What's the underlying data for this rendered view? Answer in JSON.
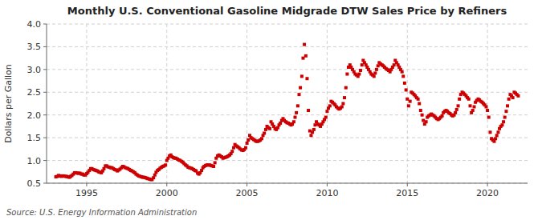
{
  "chart_data": {
    "type": "scatter",
    "title": "Monthly U.S. Conventional Gasoline Midgrade DTW Sales Price by Refiners",
    "y_label": "Dollars per Gallon",
    "annotation": "Source: U.S. Energy Information Administration",
    "color": "#cc0000",
    "marker": "square",
    "grid": true,
    "xlim": [
      1992.5,
      2022.5
    ],
    "xticks": [
      1995,
      2000,
      2005,
      2010,
      2015,
      2020
    ],
    "ylim": [
      0.5,
      4.0
    ],
    "yticks": [
      0.5,
      {
        "value": 1.0,
        "label": "1.0"
      },
      1.5,
      {
        "value": 2.0,
        "label": "2.0"
      },
      2.5,
      {
        "value": 3.0,
        "label": "3.0"
      },
      3.5,
      {
        "value": 4.0,
        "label": "4.0"
      }
    ],
    "x": [
      1993.08,
      1993.17,
      1993.25,
      1993.33,
      1993.42,
      1993.5,
      1993.58,
      1993.67,
      1993.75,
      1993.83,
      1993.92,
      1994.0,
      1994.08,
      1994.17,
      1994.25,
      1994.33,
      1994.42,
      1994.5,
      1994.58,
      1994.67,
      1994.75,
      1994.83,
      1994.92,
      1995.0,
      1995.08,
      1995.17,
      1995.25,
      1995.33,
      1995.42,
      1995.5,
      1995.58,
      1995.67,
      1995.75,
      1995.83,
      1995.92,
      1996.0,
      1996.08,
      1996.17,
      1996.25,
      1996.33,
      1996.42,
      1996.5,
      1996.58,
      1996.67,
      1996.75,
      1996.83,
      1996.92,
      1997.0,
      1997.08,
      1997.17,
      1997.25,
      1997.33,
      1997.42,
      1997.5,
      1997.58,
      1997.67,
      1997.75,
      1997.83,
      1997.92,
      1998.0,
      1998.08,
      1998.17,
      1998.25,
      1998.33,
      1998.42,
      1998.5,
      1998.58,
      1998.67,
      1998.75,
      1998.83,
      1998.92,
      1999.0,
      1999.08,
      1999.17,
      1999.25,
      1999.33,
      1999.42,
      1999.5,
      1999.58,
      1999.67,
      1999.75,
      1999.83,
      1999.92,
      2000.0,
      2000.08,
      2000.17,
      2000.25,
      2000.33,
      2000.42,
      2000.5,
      2000.58,
      2000.67,
      2000.75,
      2000.83,
      2000.92,
      2001.0,
      2001.08,
      2001.17,
      2001.25,
      2001.33,
      2001.42,
      2001.5,
      2001.58,
      2001.67,
      2001.75,
      2001.83,
      2001.92,
      2002.0,
      2002.08,
      2002.17,
      2002.25,
      2002.33,
      2002.42,
      2002.5,
      2002.58,
      2002.67,
      2002.75,
      2002.83,
      2002.92,
      2003.0,
      2003.08,
      2003.17,
      2003.25,
      2003.33,
      2003.42,
      2003.5,
      2003.58,
      2003.67,
      2003.75,
      2003.83,
      2003.92,
      2004.0,
      2004.08,
      2004.17,
      2004.25,
      2004.33,
      2004.42,
      2004.5,
      2004.58,
      2004.67,
      2004.75,
      2004.83,
      2004.92,
      2005.0,
      2005.08,
      2005.17,
      2005.25,
      2005.33,
      2005.42,
      2005.5,
      2005.58,
      2005.67,
      2005.75,
      2005.83,
      2005.92,
      2006.0,
      2006.08,
      2006.17,
      2006.25,
      2006.33,
      2006.42,
      2006.5,
      2006.58,
      2006.67,
      2006.75,
      2006.83,
      2006.92,
      2007.0,
      2007.08,
      2007.17,
      2007.25,
      2007.33,
      2007.42,
      2007.5,
      2007.58,
      2007.67,
      2007.75,
      2007.83,
      2007.92,
      2008.0,
      2008.08,
      2008.17,
      2008.25,
      2008.33,
      2008.42,
      2008.5,
      2008.58,
      2008.67,
      2008.75,
      2008.83,
      2008.92,
      2009.0,
      2009.08,
      2009.17,
      2009.25,
      2009.33,
      2009.42,
      2009.5,
      2009.58,
      2009.67,
      2009.75,
      2009.83,
      2009.92,
      2010.0,
      2010.08,
      2010.17,
      2010.25,
      2010.33,
      2010.42,
      2010.5,
      2010.58,
      2010.67,
      2010.75,
      2010.83,
      2010.92,
      2011.0,
      2011.08,
      2011.17,
      2011.25,
      2011.33,
      2011.42,
      2011.5,
      2011.58,
      2011.67,
      2011.75,
      2011.83,
      2011.92,
      2012.0,
      2012.08,
      2012.17,
      2012.25,
      2012.33,
      2012.42,
      2012.5,
      2012.58,
      2012.67,
      2012.75,
      2012.83,
      2012.92,
      2013.0,
      2013.08,
      2013.17,
      2013.25,
      2013.33,
      2013.42,
      2013.5,
      2013.58,
      2013.67,
      2013.75,
      2013.83,
      2013.92,
      2014.0,
      2014.08,
      2014.17,
      2014.25,
      2014.33,
      2014.42,
      2014.5,
      2014.58,
      2014.67,
      2014.75,
      2014.83,
      2014.92,
      2015.0,
      2015.08,
      2015.17,
      2015.25,
      2015.33,
      2015.42,
      2015.5,
      2015.58,
      2015.67,
      2015.75,
      2015.83,
      2015.92,
      2016.0,
      2016.08,
      2016.17,
      2016.25,
      2016.33,
      2016.42,
      2016.5,
      2016.58,
      2016.67,
      2016.75,
      2016.83,
      2016.92,
      2017.0,
      2017.08,
      2017.17,
      2017.25,
      2017.33,
      2017.42,
      2017.5,
      2017.58,
      2017.67,
      2017.75,
      2017.83,
      2017.92,
      2018.0,
      2018.08,
      2018.17,
      2018.25,
      2018.33,
      2018.42,
      2018.5,
      2018.58,
      2018.67,
      2018.75,
      2018.83,
      2018.92,
      2019.0,
      2019.08,
      2019.17,
      2019.25,
      2019.33,
      2019.42,
      2019.5,
      2019.58,
      2019.67,
      2019.75,
      2019.83,
      2019.92,
      2020.0,
      2020.08,
      2020.17,
      2020.25,
      2020.33,
      2020.42,
      2020.5,
      2020.58,
      2020.67,
      2020.75,
      2020.83,
      2020.92,
      2021.0,
      2021.08,
      2021.17,
      2021.25,
      2021.33,
      2021.42,
      2021.5,
      2021.58,
      2021.67,
      2021.75,
      2021.83,
      2021.92
    ],
    "values": [
      0.64,
      0.65,
      0.67,
      0.66,
      0.65,
      0.66,
      0.66,
      0.65,
      0.65,
      0.64,
      0.63,
      0.65,
      0.67,
      0.7,
      0.73,
      0.73,
      0.72,
      0.72,
      0.72,
      0.7,
      0.7,
      0.68,
      0.68,
      0.71,
      0.74,
      0.78,
      0.82,
      0.82,
      0.8,
      0.79,
      0.78,
      0.77,
      0.75,
      0.74,
      0.73,
      0.77,
      0.82,
      0.88,
      0.88,
      0.86,
      0.85,
      0.84,
      0.84,
      0.82,
      0.8,
      0.79,
      0.77,
      0.79,
      0.81,
      0.84,
      0.87,
      0.86,
      0.84,
      0.83,
      0.82,
      0.8,
      0.78,
      0.77,
      0.75,
      0.73,
      0.7,
      0.68,
      0.66,
      0.65,
      0.64,
      0.63,
      0.63,
      0.62,
      0.61,
      0.6,
      0.59,
      0.58,
      0.58,
      0.62,
      0.68,
      0.74,
      0.78,
      0.8,
      0.83,
      0.85,
      0.87,
      0.88,
      0.9,
      1.0,
      1.05,
      1.1,
      1.12,
      1.08,
      1.06,
      1.05,
      1.05,
      1.03,
      1.01,
      1.0,
      0.98,
      0.96,
      0.93,
      0.9,
      0.88,
      0.85,
      0.84,
      0.83,
      0.82,
      0.8,
      0.78,
      0.77,
      0.72,
      0.7,
      0.73,
      0.78,
      0.84,
      0.87,
      0.89,
      0.9,
      0.9,
      0.9,
      0.89,
      0.88,
      0.87,
      0.95,
      1.05,
      1.1,
      1.12,
      1.1,
      1.08,
      1.05,
      1.06,
      1.07,
      1.08,
      1.1,
      1.12,
      1.15,
      1.2,
      1.28,
      1.35,
      1.32,
      1.3,
      1.28,
      1.25,
      1.23,
      1.22,
      1.24,
      1.28,
      1.38,
      1.45,
      1.55,
      1.5,
      1.48,
      1.46,
      1.44,
      1.42,
      1.42,
      1.43,
      1.45,
      1.48,
      1.55,
      1.6,
      1.68,
      1.75,
      1.72,
      1.7,
      1.85,
      1.8,
      1.75,
      1.7,
      1.68,
      1.72,
      1.78,
      1.82,
      1.88,
      1.92,
      1.88,
      1.85,
      1.83,
      1.82,
      1.8,
      1.78,
      1.8,
      1.85,
      1.95,
      2.05,
      2.2,
      2.45,
      2.6,
      2.85,
      3.25,
      3.55,
      3.3,
      2.8,
      2.1,
      1.65,
      1.55,
      1.62,
      1.68,
      1.78,
      1.85,
      1.8,
      1.78,
      1.75,
      1.8,
      1.85,
      1.9,
      1.95,
      2.08,
      2.15,
      2.2,
      2.3,
      2.28,
      2.25,
      2.22,
      2.18,
      2.15,
      2.13,
      2.15,
      2.18,
      2.25,
      2.38,
      2.6,
      2.9,
      3.05,
      3.1,
      3.05,
      3.0,
      2.95,
      2.9,
      2.88,
      2.85,
      2.9,
      2.98,
      3.1,
      3.2,
      3.15,
      3.1,
      3.05,
      3.0,
      2.95,
      2.9,
      2.88,
      2.85,
      2.92,
      3.0,
      3.08,
      3.15,
      3.12,
      3.1,
      3.08,
      3.05,
      3.02,
      3.0,
      2.98,
      2.95,
      3.0,
      3.05,
      3.1,
      3.2,
      3.15,
      3.1,
      3.05,
      3.0,
      2.95,
      2.85,
      2.7,
      2.55,
      2.35,
      2.2,
      2.3,
      2.5,
      2.48,
      2.45,
      2.42,
      2.38,
      2.35,
      2.25,
      2.1,
      2.0,
      1.88,
      1.8,
      1.85,
      1.95,
      1.98,
      2.0,
      2.02,
      2.0,
      1.98,
      1.95,
      1.92,
      1.9,
      1.92,
      1.95,
      1.98,
      2.05,
      2.08,
      2.1,
      2.08,
      2.05,
      2.03,
      2.0,
      1.98,
      2.0,
      2.05,
      2.12,
      2.2,
      2.35,
      2.45,
      2.5,
      2.48,
      2.45,
      2.42,
      2.38,
      2.35,
      2.2,
      2.05,
      2.1,
      2.18,
      2.28,
      2.32,
      2.35,
      2.33,
      2.3,
      2.28,
      2.25,
      2.22,
      2.18,
      2.1,
      1.95,
      1.62,
      1.48,
      1.45,
      1.42,
      1.48,
      1.55,
      1.62,
      1.7,
      1.75,
      1.78,
      1.85,
      1.95,
      2.08,
      2.2,
      2.35,
      2.45,
      2.42,
      2.38,
      2.5,
      2.48,
      2.45,
      2.42
    ]
  }
}
